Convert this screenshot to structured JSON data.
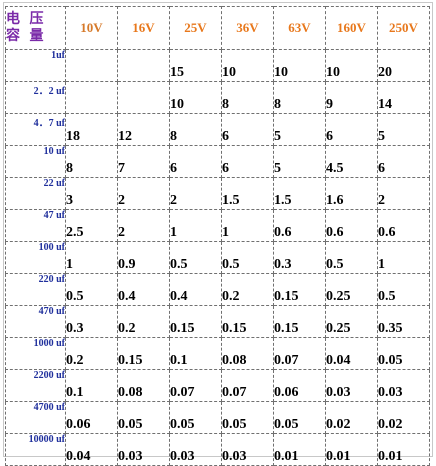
{
  "header": {
    "corner_line1": "电 压",
    "corner_line2": "容 量",
    "voltages": [
      "10V",
      "16V",
      "25V",
      "36V",
      "63V",
      "160V",
      "250V"
    ]
  },
  "rows": [
    {
      "capacity": "1uf",
      "values": [
        "",
        "",
        "15",
        "10",
        "10",
        "10",
        "20"
      ]
    },
    {
      "capacity": "2．2 uf",
      "values": [
        "",
        "",
        "10",
        "8",
        "8",
        "9",
        "14"
      ]
    },
    {
      "capacity": "4．7 uf",
      "values": [
        "18",
        "12",
        "8",
        "6",
        "5",
        "6",
        "5"
      ]
    },
    {
      "capacity": "10 uf",
      "values": [
        "8",
        "7",
        "6",
        "6",
        "5",
        "4.5",
        "6"
      ]
    },
    {
      "capacity": "22 uf",
      "values": [
        "3",
        "2",
        "2",
        "1.5",
        "1.5",
        "1.6",
        "2"
      ]
    },
    {
      "capacity": "47 uf",
      "values": [
        "2.5",
        "2",
        "1",
        "1",
        "0.6",
        "0.6",
        "0.6"
      ]
    },
    {
      "capacity": "100 uf",
      "values": [
        "1",
        "0.9",
        "0.5",
        "0.5",
        "0.3",
        "0.5",
        "1"
      ]
    },
    {
      "capacity": "220 uf",
      "values": [
        "0.5",
        "0.4",
        "0.4",
        "0.2",
        "0.15",
        "0.25",
        "0.5"
      ]
    },
    {
      "capacity": "470 uf",
      "values": [
        "0.3",
        "0.2",
        "0.15",
        "0.15",
        "0.15",
        "0.25",
        "0.35"
      ]
    },
    {
      "capacity": "1000 uf",
      "values": [
        "0.2",
        "0.15",
        "0.1",
        "0.08",
        "0.07",
        "0.04",
        "0.05"
      ]
    },
    {
      "capacity": "2200 uf",
      "values": [
        "0.1",
        "0.08",
        "0.07",
        "0.07",
        "0.06",
        "0.03",
        "0.03"
      ]
    },
    {
      "capacity": "4700 uf",
      "values": [
        "0.06",
        "0.05",
        "0.05",
        "0.05",
        "0.05",
        "0.02",
        "0.02"
      ]
    },
    {
      "capacity": "10000 uf",
      "values": [
        "0.04",
        "0.03",
        "0.03",
        "0.03",
        "0.01",
        "0.01",
        "0.01"
      ]
    }
  ],
  "colors": {
    "corner_text": "#7a2aa8",
    "voltage_text": "#e8781c",
    "capacity_text": "#1f2f9c",
    "value_text": "#000000",
    "grid_line": "#707070"
  }
}
